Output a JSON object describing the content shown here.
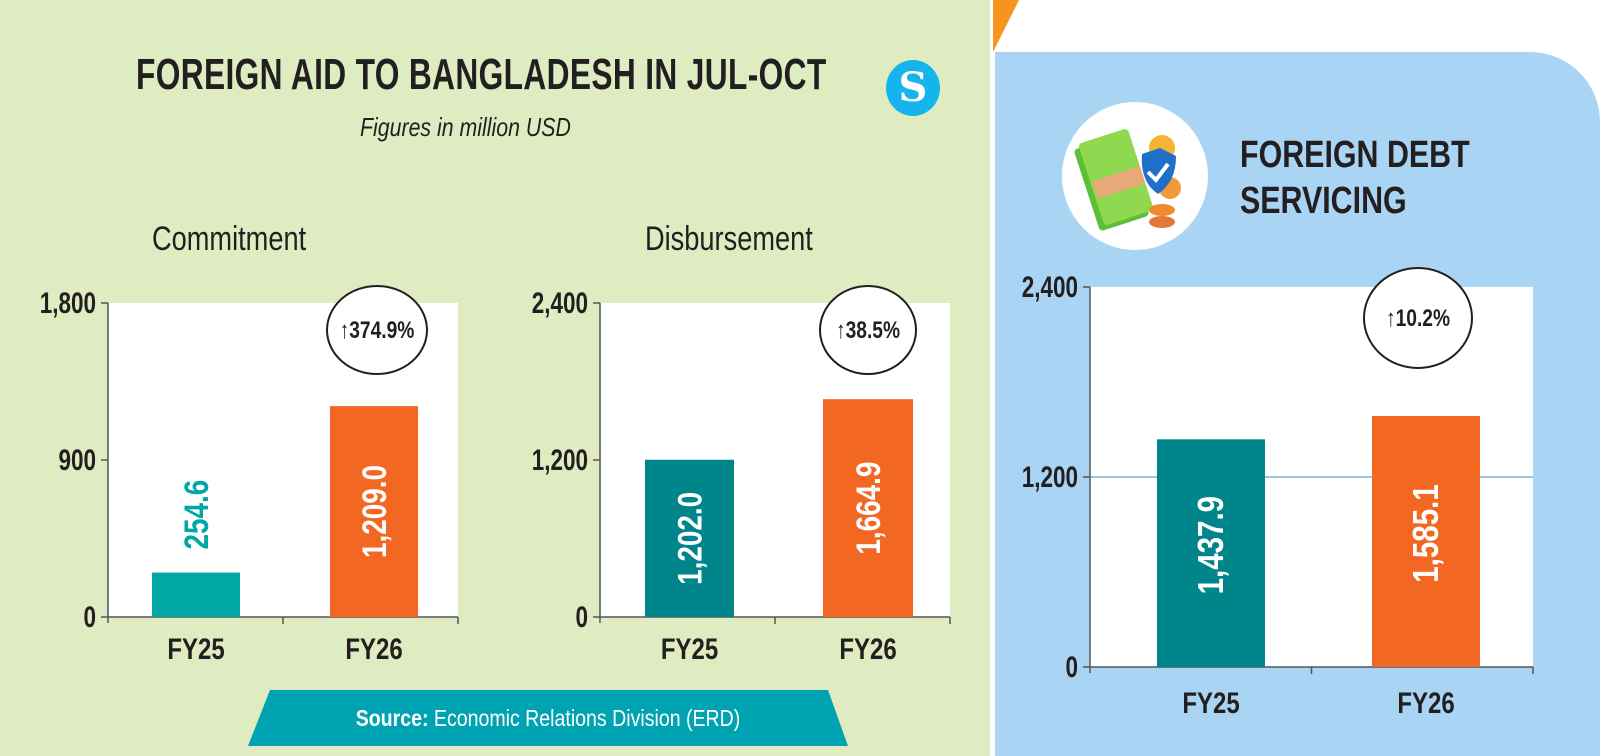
{
  "header": {
    "title": "FOREIGN AID TO BANGLADESH IN JUL-OCT",
    "subtitle": "Figures in million USD",
    "logo_text": "S"
  },
  "debt_panel": {
    "title_line1": "FOREIGN DEBT",
    "title_line2": "SERVICING",
    "icon": "money-shield-coins-icon"
  },
  "source": {
    "label": "Source:",
    "text": "Economic Relations Division (ERD)"
  },
  "colors": {
    "left_bg": "#dfebc0",
    "right_bg": "#a9d4f3",
    "teal_light": "#00a7a5",
    "teal_dark": "#00868a",
    "orange": "#f26722",
    "source_bar": "#00a3b1"
  },
  "chart_data": [
    {
      "type": "bar",
      "title": "Commitment",
      "categories": [
        "FY25",
        "FY26"
      ],
      "values": [
        254.6,
        1209.0
      ],
      "value_labels": [
        "254.6",
        "1,209.0"
      ],
      "ylim": [
        0,
        1800
      ],
      "yticks": [
        0,
        900,
        1800
      ],
      "ytick_labels": [
        "0",
        "900",
        "1,800"
      ],
      "change_label": "↑374.9%",
      "bar_colors": [
        "#00a7a5",
        "#f26722"
      ],
      "label_outside": [
        true,
        false
      ],
      "grid": false
    },
    {
      "type": "bar",
      "title": "Disbursement",
      "categories": [
        "FY25",
        "FY26"
      ],
      "values": [
        1202.0,
        1664.9
      ],
      "value_labels": [
        "1,202.0",
        "1,664.9"
      ],
      "ylim": [
        0,
        2400
      ],
      "yticks": [
        0,
        1200,
        2400
      ],
      "ytick_labels": [
        "0",
        "1,200",
        "2,400"
      ],
      "change_label": "↑38.5%",
      "bar_colors": [
        "#00868a",
        "#f26722"
      ],
      "label_outside": [
        false,
        false
      ],
      "grid": false
    },
    {
      "type": "bar",
      "title": "FOREIGN DEBT SERVICING",
      "categories": [
        "FY25",
        "FY26"
      ],
      "values": [
        1437.9,
        1585.1
      ],
      "value_labels": [
        "1,437.9",
        "1,585.1"
      ],
      "ylim": [
        0,
        2400
      ],
      "yticks": [
        0,
        1200,
        2400
      ],
      "ytick_labels": [
        "0",
        "1,200",
        "2,400"
      ],
      "change_label": "↑10.2%",
      "bar_colors": [
        "#00868a",
        "#f26722"
      ],
      "label_outside": [
        false,
        false
      ],
      "grid": true
    }
  ]
}
